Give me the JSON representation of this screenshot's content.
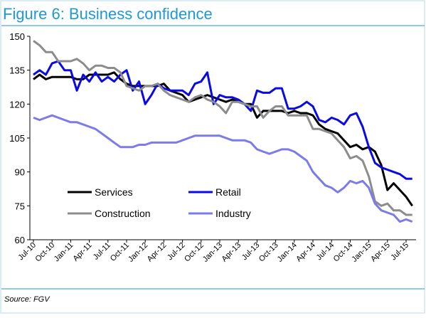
{
  "chart_data": {
    "type": "line",
    "title": "Figure 6: Business confidence",
    "source": "Source: FGV",
    "categories": [
      "Jul-10",
      null,
      null,
      "Oct-10",
      null,
      null,
      "Jan-11",
      null,
      null,
      "Apr-11",
      null,
      null,
      "Jul-11",
      null,
      null,
      "Oct-11",
      null,
      null,
      "Jan-12",
      null,
      null,
      "Apr-12",
      null,
      null,
      "Jul-12",
      null,
      null,
      "Oct-12",
      null,
      null,
      "Jan-13",
      null,
      null,
      "Apr-13",
      null,
      null,
      "Jul-13",
      null,
      null,
      "Oct-13",
      null,
      null,
      "Jan-14",
      null,
      null,
      "Apr-14",
      null,
      null,
      "Jul-14",
      null,
      null,
      "Oct-14",
      null,
      null,
      "Jan-15",
      null,
      null,
      "Apr-15",
      null,
      null,
      "Jul-15",
      null
    ],
    "series": [
      {
        "name": "Services",
        "color": "#000000",
        "values": [
          131,
          133,
          131,
          132,
          132,
          132,
          132,
          131,
          131,
          133,
          133,
          133,
          133,
          134,
          131,
          129,
          128,
          128,
          128,
          128,
          128,
          129,
          126,
          125,
          124,
          121,
          122,
          123,
          124,
          123,
          122,
          121,
          122,
          121,
          120,
          120,
          114,
          117,
          117,
          117,
          117,
          116,
          117,
          116,
          116,
          115,
          111,
          109,
          108,
          107,
          104,
          101,
          102,
          100,
          101,
          99,
          93,
          82,
          85,
          82,
          79,
          75
        ]
      },
      {
        "name": "Retail",
        "color": "#0a0ae6",
        "values": [
          133,
          135,
          133,
          138,
          139,
          135,
          135,
          126,
          133,
          130,
          134,
          130,
          132,
          130,
          133,
          135,
          126,
          130,
          120,
          124,
          129,
          127,
          126,
          126,
          126,
          124,
          129,
          130,
          134,
          120,
          124,
          123,
          123,
          122,
          120,
          117,
          126,
          125,
          125,
          127,
          127,
          118,
          118,
          119,
          121,
          119,
          113,
          112,
          114,
          113,
          111,
          115,
          116,
          110,
          101,
          94,
          92,
          91,
          90,
          89,
          87,
          87
        ]
      },
      {
        "name": "Construction",
        "color": "#8c8c8c",
        "values": [
          148,
          146,
          143,
          143,
          139,
          139,
          139,
          140,
          138,
          135,
          137,
          137,
          136,
          136,
          134,
          128,
          127,
          126,
          128,
          128,
          129,
          126,
          124,
          123,
          122,
          121,
          123,
          124,
          122,
          121,
          119,
          116,
          121,
          121,
          120,
          119,
          119,
          114,
          117,
          119,
          119,
          115,
          115,
          115,
          115,
          109,
          109,
          108,
          107,
          104,
          101,
          96,
          97,
          95,
          88,
          77,
          75,
          76,
          73,
          73,
          71,
          71
        ]
      },
      {
        "name": "Industry",
        "color": "#7b7bea",
        "values": [
          114,
          113,
          114,
          115,
          114,
          113,
          112,
          112,
          111,
          110,
          109,
          107,
          105,
          103,
          101,
          101,
          101,
          102,
          102,
          103,
          103,
          103,
          103,
          103,
          104,
          105,
          106,
          106,
          106,
          106,
          106,
          105,
          104,
          104,
          104,
          103,
          100,
          99,
          98,
          99,
          100,
          100,
          99,
          97,
          95,
          90,
          87,
          84,
          83,
          81,
          83,
          86,
          85,
          86,
          83,
          76,
          73,
          72,
          71,
          68,
          69,
          68
        ]
      }
    ],
    "ylim": [
      60,
      150
    ],
    "yticks": [
      60,
      75,
      90,
      105,
      120,
      135,
      150
    ],
    "grid": false,
    "legend": "lower left"
  }
}
